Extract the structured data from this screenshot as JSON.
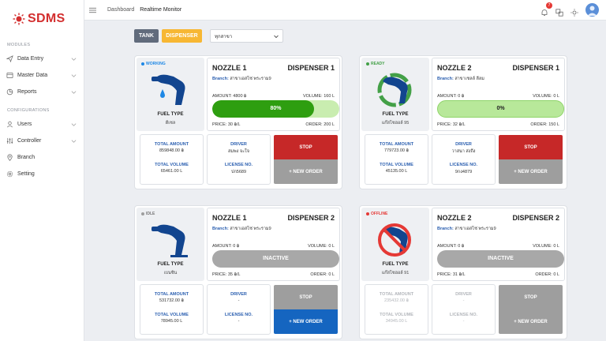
{
  "app": {
    "logo_text": "SDMS"
  },
  "sidebar": {
    "section_modules": "MODULES",
    "section_configurations": "CONFIGURATIONS",
    "modules": [
      {
        "label": "Data Entry",
        "icon": "send-icon"
      },
      {
        "label": "Master Data",
        "icon": "database-icon"
      },
      {
        "label": "Reports",
        "icon": "reports-icon"
      }
    ],
    "configurations": [
      {
        "label": "Users",
        "icon": "users-icon"
      },
      {
        "label": "Controller",
        "icon": "sliders-icon"
      },
      {
        "label": "Branch",
        "icon": "location-icon"
      },
      {
        "label": "Setting",
        "icon": "gear-icon"
      }
    ]
  },
  "topbar": {
    "breadcrumb": "Dashboard",
    "current": "Realtime Monitor",
    "notification_count": "7"
  },
  "filters": {
    "tank_label": "TANK",
    "dispenser_label": "DISPENSER",
    "branch_select": "ทุกสาขา"
  },
  "labels": {
    "fuel_type": "FUEL TYPE",
    "branch": "Branch:",
    "total_amount": "TOTAL AMOUNT",
    "total_volume": "TOTAL VOLUME",
    "driver": "DRIVER",
    "license_no": "LICENSE NO.",
    "stop": "STOP",
    "new_order": "+ NEW ORDER"
  },
  "cards": [
    {
      "status": "WORKING",
      "status_color": "#1e88e5",
      "fuel_type": "ดีเซล",
      "nozzle": "NOZZLE 1",
      "dispenser": "DISPENSER 1",
      "branch": "สาขาเอสโซ่ พระราม9",
      "amount": "AMOUNT: 4800 ฿",
      "volume": "VOLUME: 160 L",
      "progress": 0.8,
      "progress_text": "80%",
      "price": "PRICE: 30 ฿/L",
      "order": "ORDER: 200 L",
      "total_amount": "859848.00 ฿",
      "total_volume": "65461.00 L",
      "driver": "สมพง จะใจ",
      "license": "ปก5689",
      "stop_color": "#c62828",
      "new_color": "#9e9e9e"
    },
    {
      "status": "READY",
      "status_color": "#43a047",
      "fuel_type": "แก๊สโซฮอล์ 95",
      "nozzle": "NOZZLE 2",
      "dispenser": "DISPENSER 1",
      "branch": "สาขาเชลล์ ลีลม",
      "amount": "AMOUNT: 0 ฿",
      "volume": "VOLUME: 0 L",
      "progress": 0,
      "progress_text": "0%",
      "price": "PRICE: 32 ฿/L",
      "order": "ORDER: 150 L",
      "total_amount": "779723.00 ฿",
      "total_volume": "45135.00 L",
      "driver": "วาสนา ส่งถึง",
      "license": "9กง4879",
      "stop_color": "#c62828",
      "new_color": "#9e9e9e"
    },
    {
      "status": "IDLE",
      "status_color": "#9e9e9e",
      "fuel_type": "เบนซิน",
      "nozzle": "NOZZLE 1",
      "dispenser": "DISPENSER 2",
      "branch": "สาขาเอสโซ่ พระราม9",
      "amount": "AMOUNT: 0 ฿",
      "volume": "VOLUME: 0 L",
      "progress": 0,
      "progress_text": "INACTIVE",
      "price": "PRICE: 35 ฿/L",
      "order": "ORDER: 0 L",
      "total_amount": "531732.00 ฿",
      "total_volume": "78945.00 L",
      "driver": "-",
      "license": "-",
      "stop_color": "#9e9e9e",
      "new_color": "#1565c0"
    },
    {
      "status": "OFFLINE",
      "status_color": "#e53935",
      "fuel_type": "แก๊สโซฮอล์ 91",
      "nozzle": "NOZZLE 2",
      "dispenser": "DISPENSER 2",
      "branch": "สาขาเอสโซ่ พระราม9",
      "amount": "AMOUNT: 0 ฿",
      "volume": "VOLUME: 0 L",
      "progress": 0,
      "progress_text": "INACTIVE",
      "price": "PRICE: 31 ฿/L",
      "order": "ORDER: 0 L",
      "total_amount": "235432.00 ฿",
      "total_volume": "34945.00 L",
      "driver": "-",
      "license": "-",
      "stop_color": "#9e9e9e",
      "new_color": "#9e9e9e"
    }
  ]
}
